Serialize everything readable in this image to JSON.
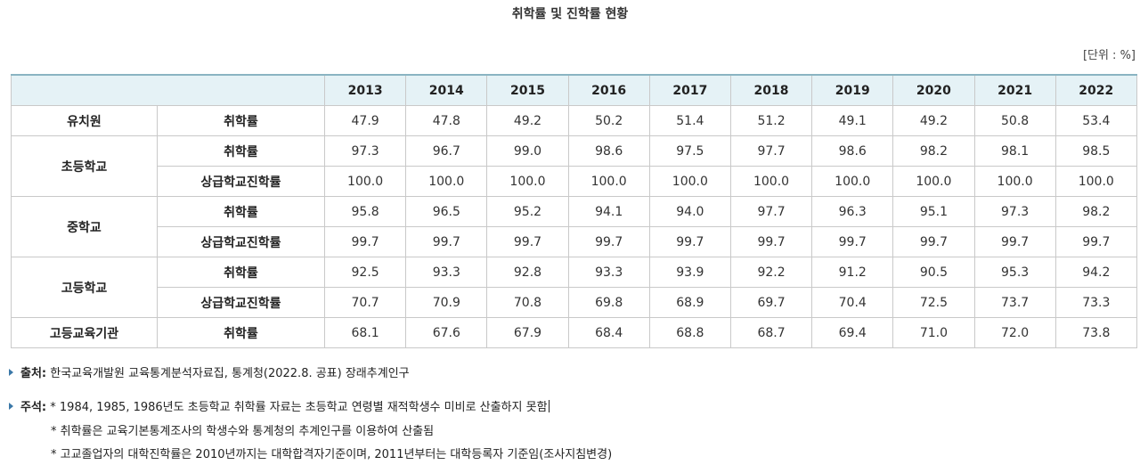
{
  "title": "취학률 및 진학률 현황",
  "unit": "[단위 : %]",
  "years": [
    "2013",
    "2014",
    "2015",
    "2016",
    "2017",
    "2018",
    "2019",
    "2020",
    "2021",
    "2022"
  ],
  "rows": [
    {
      "group": "유치원",
      "sub": "취학률",
      "values": [
        "47.9",
        "47.8",
        "49.2",
        "50.2",
        "51.4",
        "51.2",
        "49.1",
        "49.2",
        "50.8",
        "53.4"
      ]
    },
    {
      "group": "초등학교",
      "sub": "취학률",
      "values": [
        "97.3",
        "96.7",
        "99.0",
        "98.6",
        "97.5",
        "97.7",
        "98.6",
        "98.2",
        "98.1",
        "98.5"
      ]
    },
    {
      "group": "초등학교",
      "sub": "상급학교진학률",
      "values": [
        "100.0",
        "100.0",
        "100.0",
        "100.0",
        "100.0",
        "100.0",
        "100.0",
        "100.0",
        "100.0",
        "100.0"
      ]
    },
    {
      "group": "중학교",
      "sub": "취학률",
      "values": [
        "95.8",
        "96.5",
        "95.2",
        "94.1",
        "94.0",
        "97.7",
        "96.3",
        "95.1",
        "97.3",
        "98.2"
      ]
    },
    {
      "group": "중학교",
      "sub": "상급학교진학률",
      "values": [
        "99.7",
        "99.7",
        "99.7",
        "99.7",
        "99.7",
        "99.7",
        "99.7",
        "99.7",
        "99.7",
        "99.7"
      ]
    },
    {
      "group": "고등학교",
      "sub": "취학률",
      "values": [
        "92.5",
        "93.3",
        "92.8",
        "93.3",
        "93.9",
        "92.2",
        "91.2",
        "90.5",
        "95.3",
        "94.2"
      ]
    },
    {
      "group": "고등학교",
      "sub": "상급학교진학률",
      "values": [
        "70.7",
        "70.9",
        "70.8",
        "69.8",
        "68.9",
        "69.7",
        "70.4",
        "72.5",
        "73.7",
        "73.3"
      ]
    },
    {
      "group": "고등교육기관",
      "sub": "취학률",
      "values": [
        "68.1",
        "67.6",
        "67.9",
        "68.4",
        "68.8",
        "68.7",
        "69.4",
        "71.0",
        "72.0",
        "73.8"
      ]
    }
  ],
  "source": {
    "label": "출처:",
    "text": "한국교육개발원 교육통계분석자료집, 통계청(2022.8. 공표) 장래추계인구"
  },
  "notes": {
    "label": "주석:",
    "lines": [
      "* 1984, 1985, 1986년도 초등학교 취학률 자료는 초등학교 연령별 재적학생수 미비로 산출하지 못함",
      "* 취학률은 교육기본통계조사의 학생수와 통계청의 추계인구를 이용하여 산출됨",
      "* 고교졸업자의 대학진학률은 2010년까지는 대학합격자기준이며, 2011년부터는 대학등록자 기준임(조사지침변경)"
    ]
  }
}
